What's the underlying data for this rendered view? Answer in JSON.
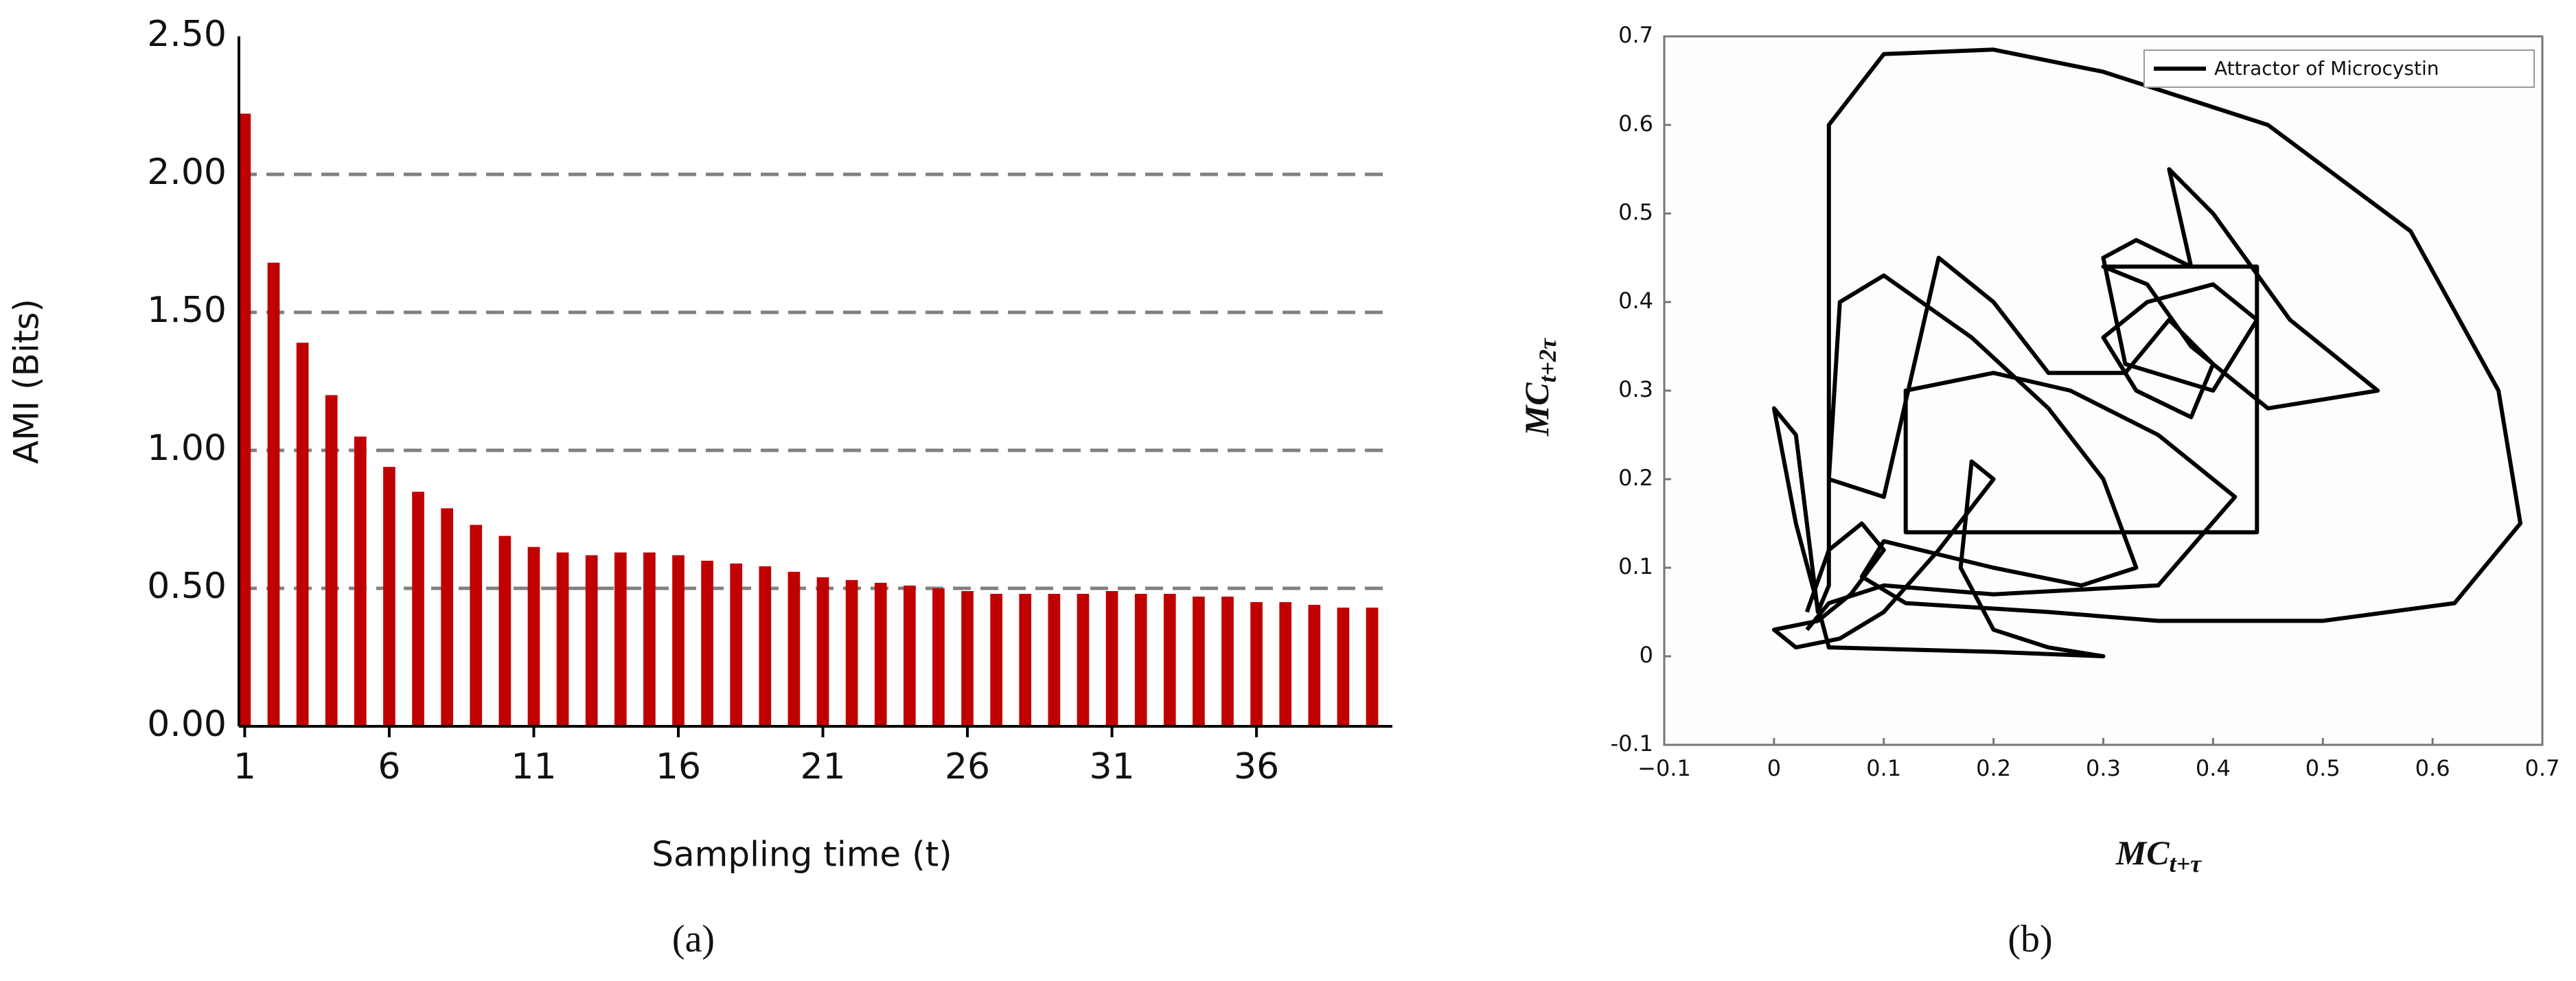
{
  "chart_data": [
    {
      "type": "bar",
      "caption": "(a)",
      "xlabel": "Sampling time (t)",
      "ylabel": "AMI (Bits)",
      "color": "#c00000",
      "x": [
        1,
        2,
        3,
        4,
        5,
        6,
        7,
        8,
        9,
        10,
        11,
        12,
        13,
        14,
        15,
        16,
        17,
        18,
        19,
        20,
        21,
        22,
        23,
        24,
        25,
        26,
        27,
        28,
        29,
        30,
        31,
        32,
        33,
        34,
        35,
        36,
        37,
        38,
        39,
        40
      ],
      "values": [
        2.22,
        1.68,
        1.39,
        1.2,
        1.05,
        0.94,
        0.85,
        0.79,
        0.73,
        0.69,
        0.65,
        0.63,
        0.62,
        0.63,
        0.63,
        0.62,
        0.6,
        0.59,
        0.58,
        0.56,
        0.54,
        0.53,
        0.52,
        0.51,
        0.5,
        0.49,
        0.48,
        0.48,
        0.48,
        0.48,
        0.49,
        0.48,
        0.48,
        0.47,
        0.47,
        0.45,
        0.45,
        0.44,
        0.43,
        0.43
      ],
      "xlim": [
        0.8,
        40.7
      ],
      "xticks": [
        1,
        6,
        11,
        16,
        21,
        26,
        31,
        36
      ],
      "ylim": [
        0,
        2.5
      ],
      "yticks": [
        {
          "value": 0,
          "label": "0.00"
        },
        {
          "value": 0.5,
          "label": "0.50"
        },
        {
          "value": 1,
          "label": "1.00"
        },
        {
          "value": 1.5,
          "label": "1.50"
        },
        {
          "value": 2,
          "label": "2.00"
        },
        {
          "value": 2.5,
          "label": "2.50"
        }
      ],
      "grid": true
    },
    {
      "type": "line",
      "caption": "(b)",
      "xlabel": "MC",
      "xlabel_subscript": "t+τ",
      "ylabel": "MC",
      "ylabel_subscript": "t+2τ",
      "series": [
        {
          "name": "Attractor of Microcystin",
          "color": "#000000",
          "x": [
            0.03,
            0.05,
            0.08,
            0.1,
            0.07,
            0.04,
            0.0,
            0.02,
            0.06,
            0.1,
            0.15,
            0.2,
            0.18,
            0.17,
            0.2,
            0.25,
            0.3,
            0.2,
            0.05,
            0.02,
            0.0,
            0.02,
            0.04,
            0.05,
            0.05,
            0.1,
            0.2,
            0.3,
            0.45,
            0.58,
            0.66,
            0.68,
            0.62,
            0.5,
            0.35,
            0.25,
            0.12,
            0.08,
            0.1,
            0.2,
            0.28,
            0.33,
            0.3,
            0.25,
            0.18,
            0.1,
            0.06,
            0.05,
            0.1,
            0.15,
            0.2,
            0.25,
            0.32,
            0.36,
            0.4,
            0.38,
            0.33,
            0.3,
            0.34,
            0.4,
            0.44,
            0.4,
            0.32,
            0.3,
            0.33,
            0.38,
            0.36,
            0.4,
            0.47,
            0.55,
            0.45,
            0.38,
            0.34,
            0.3,
            0.44,
            0.44,
            0.3,
            0.12,
            0.12,
            0.2,
            0.27,
            0.35,
            0.42,
            0.35,
            0.2,
            0.1,
            0.05,
            0.03
          ],
          "values": [
            0.05,
            0.12,
            0.15,
            0.12,
            0.07,
            0.04,
            0.03,
            0.01,
            0.02,
            0.05,
            0.12,
            0.2,
            0.22,
            0.1,
            0.03,
            0.01,
            0.0,
            0.005,
            0.01,
            0.15,
            0.28,
            0.25,
            0.05,
            0.08,
            0.6,
            0.68,
            0.685,
            0.66,
            0.6,
            0.48,
            0.3,
            0.15,
            0.06,
            0.04,
            0.04,
            0.05,
            0.06,
            0.09,
            0.13,
            0.1,
            0.08,
            0.1,
            0.2,
            0.28,
            0.36,
            0.43,
            0.4,
            0.2,
            0.18,
            0.45,
            0.4,
            0.32,
            0.32,
            0.38,
            0.33,
            0.27,
            0.3,
            0.36,
            0.4,
            0.42,
            0.38,
            0.3,
            0.33,
            0.45,
            0.47,
            0.44,
            0.55,
            0.5,
            0.38,
            0.3,
            0.28,
            0.35,
            0.42,
            0.44,
            0.44,
            0.14,
            0.14,
            0.14,
            0.3,
            0.32,
            0.3,
            0.25,
            0.18,
            0.08,
            0.07,
            0.08,
            0.06,
            0.03
          ]
        }
      ],
      "xlim": [
        -0.1,
        0.7
      ],
      "xticks": [
        {
          "value": -0.1,
          "label": "−0.1"
        },
        0,
        0.1,
        0.2,
        0.3,
        0.4,
        0.5,
        0.6,
        0.7
      ],
      "ylim": [
        -0.1,
        0.7
      ],
      "yticks": [
        -0.1,
        0,
        0.1,
        0.2,
        0.3,
        0.4,
        0.5,
        0.6,
        0.7
      ],
      "legend": "upper right"
    }
  ]
}
